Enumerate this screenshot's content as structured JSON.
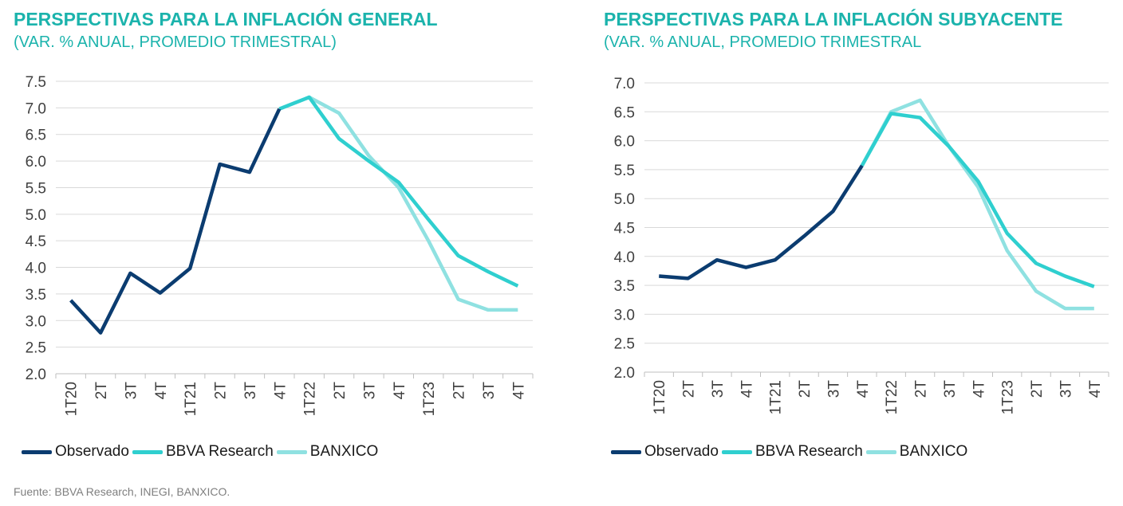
{
  "source": "Fuente: BBVA Research, INEGI, BANXICO.",
  "legend": [
    {
      "label": "Observado",
      "color": "#0b3c70"
    },
    {
      "label": "BBVA Research",
      "color": "#2fcfcf"
    },
    {
      "label": "BANXICO",
      "color": "#8fe1e1"
    }
  ],
  "chart_data": [
    {
      "type": "line",
      "title": "PERSPECTIVAS PARA LA INFLACIÓN GENERAL",
      "subtitle": "(VAR. % ANUAL, PROMEDIO TRIMESTRAL)",
      "categories": [
        "1T20",
        "2T",
        "3T",
        "4T",
        "1T21",
        "2T",
        "3T",
        "4T",
        "1T22",
        "2T",
        "3T",
        "4T",
        "1T23",
        "2T",
        "3T",
        "4T"
      ],
      "ylim": [
        2.0,
        7.5
      ],
      "yticks": [
        "2.0",
        "2.5",
        "3.0",
        "3.5",
        "4.0",
        "4.5",
        "5.0",
        "5.5",
        "6.0",
        "6.5",
        "7.0",
        "7.5"
      ],
      "grid": true,
      "legend_position": "bottom",
      "series": [
        {
          "name": "BANXICO",
          "color": "#8fe1e1",
          "values": [
            null,
            null,
            null,
            null,
            null,
            null,
            null,
            6.98,
            7.2,
            6.9,
            6.1,
            5.5,
            4.5,
            3.4,
            3.2,
            3.2
          ]
        },
        {
          "name": "BBVA Research",
          "color": "#2fcfcf",
          "values": [
            null,
            null,
            null,
            null,
            null,
            null,
            null,
            6.98,
            7.2,
            6.42,
            6.0,
            5.6,
            4.9,
            4.22,
            3.92,
            3.65
          ]
        },
        {
          "name": "Observado",
          "color": "#0b3c70",
          "values": [
            3.38,
            2.77,
            3.89,
            3.52,
            3.98,
            5.94,
            5.79,
            6.98,
            null,
            null,
            null,
            null,
            null,
            null,
            null,
            null
          ]
        }
      ]
    },
    {
      "type": "line",
      "title": "PERSPECTIVAS PARA LA INFLACIÓN SUBYACENTE",
      "subtitle": "(VAR. % ANUAL, PROMEDIO TRIMESTRAL",
      "categories": [
        "1T20",
        "2T",
        "3T",
        "4T",
        "1T21",
        "2T",
        "3T",
        "4T",
        "1T22",
        "2T",
        "3T",
        "4T",
        "1T23",
        "2T",
        "3T",
        "4T"
      ],
      "ylim": [
        2.0,
        7.0
      ],
      "yticks": [
        "2.0",
        "2.5",
        "3.0",
        "3.5",
        "4.0",
        "4.5",
        "5.0",
        "5.5",
        "6.0",
        "6.5",
        "7.0"
      ],
      "grid": true,
      "legend_position": "bottom",
      "series": [
        {
          "name": "BANXICO",
          "color": "#8fe1e1",
          "values": [
            null,
            null,
            null,
            null,
            null,
            null,
            null,
            5.57,
            6.5,
            6.7,
            5.9,
            5.2,
            4.1,
            3.4,
            3.1,
            3.1
          ]
        },
        {
          "name": "BBVA Research",
          "color": "#2fcfcf",
          "values": [
            null,
            null,
            null,
            null,
            null,
            null,
            null,
            5.57,
            6.47,
            6.4,
            5.9,
            5.3,
            4.4,
            3.88,
            3.66,
            3.48
          ]
        },
        {
          "name": "Observado",
          "color": "#0b3c70",
          "values": [
            3.66,
            3.62,
            3.94,
            3.81,
            3.94,
            4.35,
            4.78,
            5.57,
            null,
            null,
            null,
            null,
            null,
            null,
            null,
            null
          ]
        }
      ]
    }
  ]
}
